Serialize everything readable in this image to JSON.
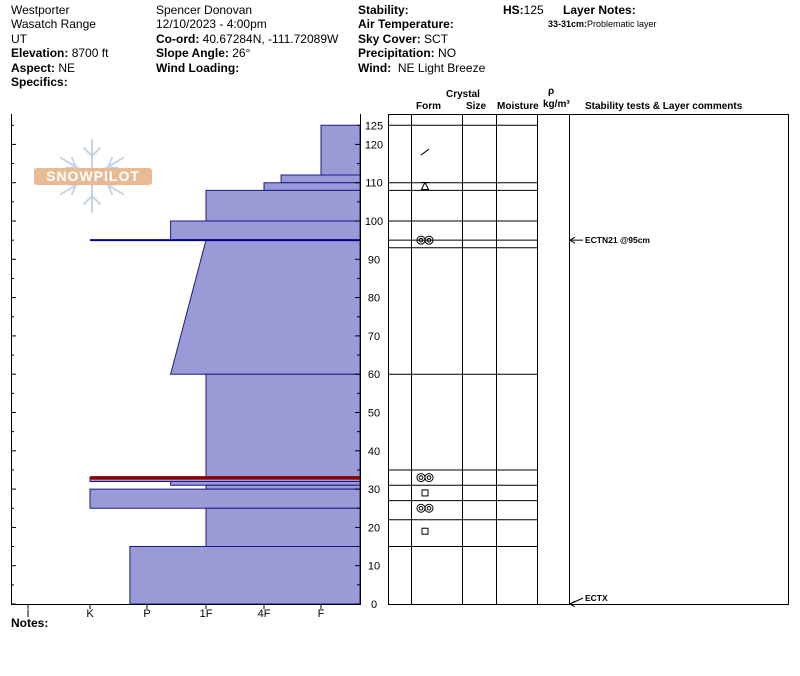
{
  "header": {
    "location": "Westporter",
    "range": "Wasatch Range",
    "state": "UT",
    "elevation_label": "Elevation:",
    "elevation_value": "8700 ft",
    "aspect_label": "Aspect:",
    "aspect_value": "NE",
    "specifics_label": "Specifics:",
    "observer": "Spencer Donovan",
    "datetime": "12/10/2023 - 4:00pm",
    "coord_label": "Co-ord:",
    "coord_value": "40.67284N, -111.72089W",
    "slope_label": "Slope Angle:",
    "slope_value": "26°",
    "wind_loading_label": "Wind Loading:",
    "stability_label": "Stability:",
    "air_temp_label": "Air Temperature:",
    "sky_label": "Sky Cover:",
    "sky_value": "SCT",
    "precip_label": "Precipitation:",
    "precip_value": "NO",
    "wind_label": "Wind:",
    "wind_value": "NE Light Breeze",
    "hs_label": "HS:",
    "hs_value": "125",
    "layer_notes_label": "Layer Notes:",
    "layer_note": "33-31cm:",
    "layer_note_text": "Problematic layer"
  },
  "logo_text": "SNOWPILOT",
  "column_headers": {
    "crystal": "Crystal",
    "form": "Form",
    "size": "Size",
    "moisture": "Moisture",
    "rho": "ρ",
    "density": "kg/m³",
    "comments": "Stability tests & Layer comments"
  },
  "notes_label": "Notes:",
  "colors": {
    "hardness_fill": "#9a9ad6",
    "hardness_stroke": "#1a1a8c",
    "weak_layer": "#8b0000",
    "test_line": "#00008b"
  },
  "chart_data": {
    "type": "bar",
    "title": "",
    "xlabel": "",
    "ylabel": "",
    "ylim": [
      0,
      125
    ],
    "y_ticks": [
      0,
      10,
      20,
      30,
      40,
      50,
      60,
      70,
      80,
      90,
      100,
      110,
      120,
      125
    ],
    "hardness_ticks": [
      "I",
      "K",
      "P",
      "1F",
      "4F",
      "F"
    ],
    "layers": [
      {
        "top": 125,
        "bottom": 112,
        "hardness": 5.0
      },
      {
        "top": 112,
        "bottom": 110,
        "hardness": 4.3
      },
      {
        "top": 110,
        "bottom": 108,
        "hardness": 4.0
      },
      {
        "top": 108,
        "bottom": 100,
        "hardness": 3.0
      },
      {
        "top": 100,
        "bottom": 95,
        "hardness": 2.4
      },
      {
        "top": 95,
        "bottom": 60,
        "hardness": 2.4,
        "hardness_top": 3.0
      },
      {
        "top": 60,
        "bottom": 33,
        "hardness": 3.0
      },
      {
        "top": 33,
        "bottom": 32,
        "hardness": 1.0,
        "weak": true
      },
      {
        "top": 32,
        "bottom": 31,
        "hardness": 2.4
      },
      {
        "top": 31,
        "bottom": 30,
        "hardness": 3.0
      },
      {
        "top": 30,
        "bottom": 25,
        "hardness": 1.0
      },
      {
        "top": 25,
        "bottom": 15,
        "hardness": 3.0
      },
      {
        "top": 15,
        "bottom": 0,
        "hardness": 1.7
      }
    ],
    "test_line_depth": 95,
    "boundaries": [
      125,
      110,
      108,
      100,
      95,
      93,
      60,
      35,
      31,
      27,
      22,
      15
    ],
    "forms": [
      {
        "depth": 118,
        "symbol": "slash"
      },
      {
        "depth": 109,
        "symbol": "facet-rounding"
      },
      {
        "depth": 95,
        "symbol": "surface-hoar"
      },
      {
        "depth": 33,
        "symbol": "surface-hoar"
      },
      {
        "depth": 29,
        "symbol": "square"
      },
      {
        "depth": 25,
        "symbol": "surface-hoar"
      },
      {
        "depth": 19,
        "symbol": "square"
      }
    ],
    "tests": [
      {
        "depth": 95,
        "label": "ECTN21 @95cm"
      },
      {
        "depth": 0,
        "label": "ECTX"
      }
    ]
  }
}
